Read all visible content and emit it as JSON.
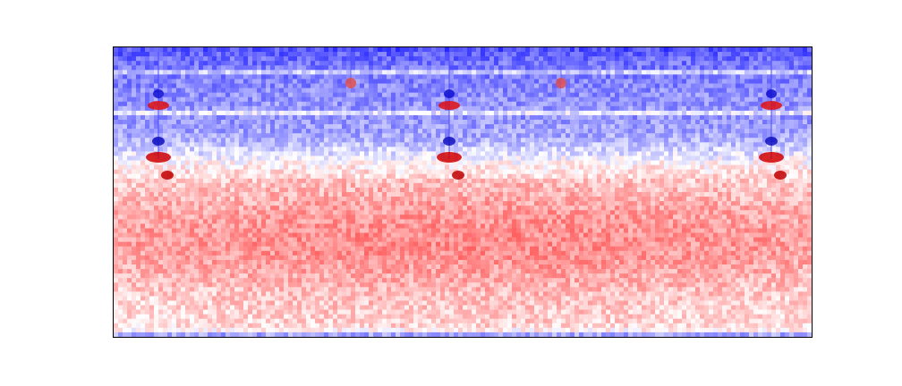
{
  "chart_data": {
    "type": "heatmap",
    "title": "",
    "xlabel": "",
    "ylabel": "",
    "colormap": "bwr",
    "colors": {
      "low": "#0000ff",
      "mid": "#ffffff",
      "high": "#ff0000",
      "frame": "#000000"
    },
    "axes_ticks": false,
    "grid": false,
    "legend": "none",
    "n_rows": 64,
    "n_cols": 156,
    "row_profile": [
      -0.68,
      -0.62,
      -0.58,
      -0.55,
      -0.52,
      -0.2,
      -0.5,
      -0.48,
      -0.47,
      -0.45,
      -0.44,
      -0.43,
      -0.42,
      -0.4,
      -0.1,
      -0.42,
      -0.4,
      -0.38,
      -0.36,
      -0.34,
      -0.3,
      -0.25,
      -0.18,
      -0.12,
      -0.05,
      0.03,
      0.08,
      0.12,
      0.15,
      0.18,
      0.2,
      0.22,
      0.24,
      0.26,
      0.28,
      0.3,
      0.32,
      0.33,
      0.34,
      0.35,
      0.36,
      0.37,
      0.38,
      0.38,
      0.37,
      0.36,
      0.35,
      0.33,
      0.31,
      0.29,
      0.27,
      0.25,
      0.23,
      0.21,
      0.19,
      0.17,
      0.16,
      0.15,
      0.14,
      0.13,
      0.12,
      0.1,
      0.05,
      -0.35
    ],
    "events": [
      {
        "col": 10,
        "kind": "strong"
      },
      {
        "col": 53,
        "kind": "weak"
      },
      {
        "col": 75,
        "kind": "strong"
      },
      {
        "col": 100,
        "kind": "weak"
      },
      {
        "col": 147,
        "kind": "strong"
      }
    ]
  }
}
